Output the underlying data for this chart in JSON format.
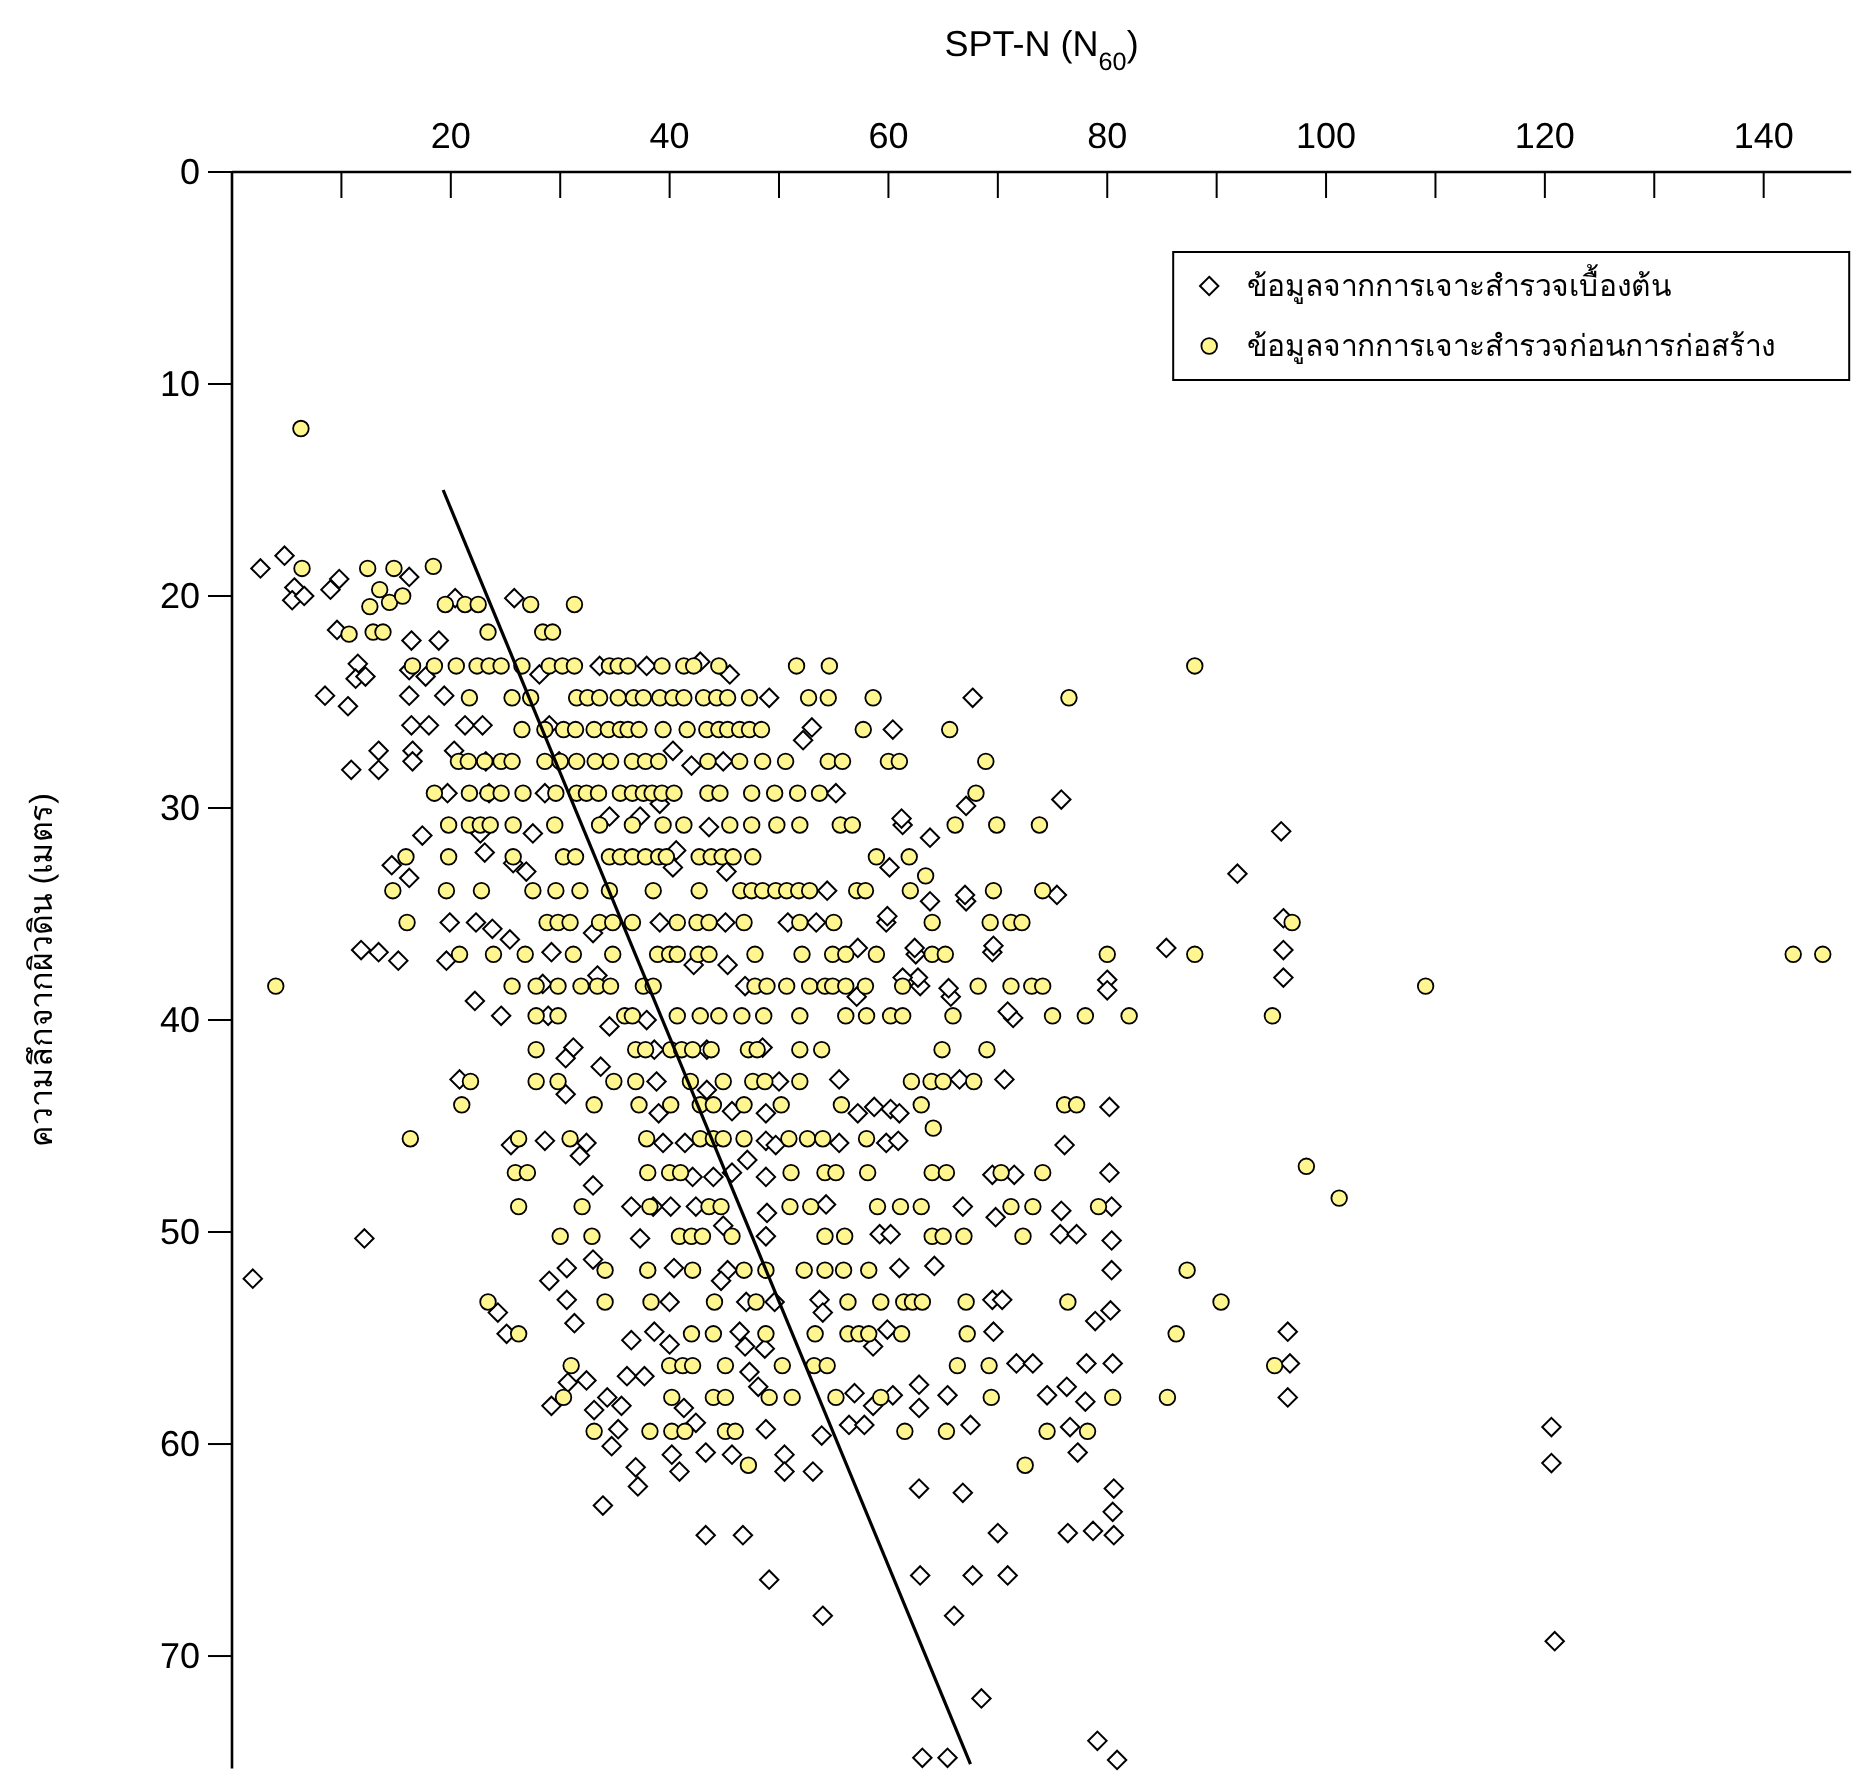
{
  "chart_data": {
    "type": "scatter",
    "xlabel": "SPT-N (N$_{60}$)",
    "ylabel": "ความลึกจากผิวดิน (เมตร)",
    "xlim": [
      0,
      148
    ],
    "ylim": [
      75.3,
      0
    ],
    "xticks": [
      {
        "value": 10,
        "label": null
      },
      20,
      {
        "value": 30,
        "label": null
      },
      40,
      {
        "value": 50,
        "label": null
      },
      60,
      {
        "value": 70,
        "label": null
      },
      80,
      {
        "value": 90,
        "label": null
      },
      100,
      {
        "value": 110,
        "label": null
      },
      120,
      {
        "value": 130,
        "label": null
      },
      140
    ],
    "yticks": [
      0,
      10,
      20,
      30,
      40,
      50,
      60,
      70
    ],
    "legend": "top right",
    "series": [
      {
        "name": "ข้อมูลจากการเจาะสำรวจเบื้องต้น",
        "type": "scatter",
        "marker": "diamond",
        "color": "#ffffff",
        "x": [
          2.6,
          4.8,
          5.7,
          5.5,
          6.6,
          9.0,
          9.8,
          16.2,
          25.8,
          20.4,
          9.6,
          16.4,
          18.9,
          11.5,
          11.3,
          12.2,
          8.5,
          10.6,
          16.2,
          17.7,
          16.2,
          19.4,
          28.1,
          33.6,
          37.9,
          42.8,
          45.5,
          49.1,
          67.7,
          16.4,
          18.0,
          21.3,
          22.9,
          29.0,
          13.4,
          16.5,
          20.3,
          10.9,
          13.4,
          16.5,
          23.2,
          29.9,
          40.3,
          42.0,
          44.9,
          52.2,
          53.0,
          60.4,
          19.7,
          23.5,
          28.6,
          39.1,
          55.2,
          67.1,
          17.4,
          22.7,
          27.5,
          34.5,
          37.3,
          40.6,
          43.6,
          61.3,
          63.8,
          14.6,
          16.2,
          23.1,
          25.7,
          26.9,
          40.3,
          45.2,
          19.9,
          22.3,
          23.8,
          25.4,
          33.0,
          39.1,
          45.1,
          50.8,
          53.4,
          59.8,
          67.1,
          63.8,
          54.4,
          60.1,
          11.8,
          13.4,
          15.2,
          19.6,
          29.2,
          42.2,
          45.3,
          62.5,
          69.5,
          22.2,
          24.6,
          28.4,
          33.4,
          37.9,
          46.9,
          57.1,
          62.9,
          65.7,
          71.4,
          61.2,
          75.8,
          95.9,
          91.9,
          96.1,
          96.1,
          96.1,
          85.4,
          69.6,
          75.4,
          67.0,
          59.9,
          57.2,
          62.4,
          62.7,
          61.3,
          65.5,
          80.0,
          80.0,
          70.9,
          1.9,
          12.1,
          28.9,
          34.5,
          31.2,
          30.5,
          38.6,
          48.5,
          43.4,
          20.8,
          30.5,
          33.7,
          38.8,
          43.4,
          50.0,
          39.0,
          45.7,
          48.8,
          25.5,
          28.6,
          32.4,
          31.8,
          33.0,
          39.4,
          41.4,
          48.8,
          49.7,
          42.1,
          44.0,
          45.7,
          47.1,
          48.8,
          36.5,
          38.5,
          40.1,
          42.4,
          48.9,
          44.9,
          37.3,
          48.8,
          30.6,
          29.0,
          33.0,
          40.4,
          45.3,
          44.7,
          30.6,
          24.3,
          25.1,
          31.3,
          40.0,
          47.0,
          49.6,
          36.5,
          38.6,
          40.0,
          46.4,
          46.9,
          48.7,
          32.4,
          30.7,
          36.1,
          37.7,
          47.3,
          48.1,
          29.2,
          34.3,
          35.6,
          41.3,
          42.4,
          33.1,
          34.7,
          35.3,
          36.9,
          37.1,
          40.2,
          40.9,
          43.3,
          45.7,
          48.8,
          50.5,
          50.5,
          33.9,
          43.3,
          46.7,
          49.1,
          55.5,
          66.5,
          70.6,
          57.2,
          58.7,
          60.2,
          61.0,
          80.2,
          55.5,
          59.8,
          60.9,
          76.1,
          69.5,
          71.5,
          80.2,
          54.3,
          66.8,
          69.8,
          75.8,
          80.4,
          59.2,
          60.2,
          75.7,
          77.2,
          80.4,
          61.0,
          64.2,
          80.4,
          53.7,
          54.0,
          69.5,
          70.4,
          78.9,
          80.3,
          96.5,
          58.6,
          59.9,
          69.6,
          71.7,
          73.2,
          78.1,
          80.5,
          96.7,
          96.5,
          56.9,
          62.8,
          62.8,
          65.4,
          58.6,
          60.4,
          74.5,
          76.3,
          78.0,
          67.5,
          76.6,
          56.4,
          57.8,
          120.6,
          120.6,
          53.9,
          53.1,
          77.3,
          62.8,
          66.8,
          80.6,
          80.5,
          70.0,
          76.4,
          78.7,
          80.6,
          62.9,
          67.7,
          70.9,
          54.0,
          66.0,
          120.9,
          68.5,
          79.1,
          63.1,
          65.4,
          80.9
        ],
        "values": [
          18.7,
          18.1,
          19.6,
          20.2,
          20.0,
          19.7,
          19.2,
          19.1,
          20.1,
          20.1,
          21.6,
          22.1,
          22.1,
          23.2,
          23.9,
          23.8,
          24.7,
          25.2,
          23.5,
          23.8,
          24.7,
          24.7,
          23.7,
          23.3,
          23.3,
          23.1,
          23.7,
          24.8,
          24.8,
          26.1,
          26.1,
          26.1,
          26.1,
          26.1,
          27.3,
          27.3,
          27.3,
          28.2,
          28.2,
          27.8,
          27.8,
          27.8,
          27.3,
          28.0,
          27.8,
          26.8,
          26.2,
          26.3,
          29.3,
          29.3,
          29.3,
          29.8,
          29.3,
          29.9,
          31.3,
          31.2,
          31.2,
          30.4,
          30.4,
          32.0,
          30.9,
          30.8,
          31.4,
          32.7,
          33.3,
          32.1,
          32.6,
          33.0,
          32.8,
          33.0,
          35.4,
          35.4,
          35.7,
          36.2,
          35.9,
          35.4,
          35.4,
          35.4,
          35.4,
          35.4,
          34.4,
          34.4,
          33.9,
          32.8,
          36.7,
          36.8,
          37.2,
          37.2,
          36.8,
          37.4,
          37.4,
          36.9,
          36.8,
          39.1,
          39.8,
          38.3,
          37.9,
          40.0,
          38.4,
          38.9,
          38.4,
          38.9,
          39.9,
          30.5,
          29.6,
          31.1,
          33.1,
          35.2,
          36.7,
          38.0,
          36.6,
          36.5,
          34.1,
          34.1,
          35.1,
          36.6,
          36.6,
          38.0,
          38.0,
          38.5,
          38.1,
          38.6,
          39.6,
          52.2,
          50.3,
          39.8,
          40.3,
          41.3,
          41.8,
          41.4,
          41.3,
          41.4,
          42.8,
          43.5,
          42.2,
          42.9,
          43.3,
          42.9,
          44.4,
          44.3,
          44.4,
          45.9,
          45.7,
          45.8,
          46.4,
          47.8,
          45.8,
          45.8,
          45.7,
          45.9,
          47.4,
          47.4,
          47.2,
          46.6,
          47.4,
          48.8,
          48.8,
          48.8,
          48.8,
          49.1,
          49.7,
          50.3,
          50.2,
          51.7,
          52.3,
          51.3,
          51.7,
          51.8,
          52.3,
          53.2,
          53.8,
          54.8,
          54.3,
          53.3,
          53.3,
          53.3,
          55.1,
          54.7,
          55.3,
          54.7,
          55.4,
          55.5,
          57.0,
          57.1,
          56.8,
          56.8,
          56.6,
          57.3,
          58.2,
          57.8,
          58.2,
          58.3,
          59.0,
          58.4,
          60.1,
          59.3,
          61.1,
          62.0,
          60.5,
          61.3,
          60.4,
          60.5,
          59.3,
          60.5,
          61.3,
          62.9,
          64.3,
          64.3,
          66.4,
          42.8,
          42.8,
          42.8,
          44.4,
          44.1,
          44.2,
          44.4,
          44.1,
          45.8,
          45.8,
          45.7,
          45.9,
          47.3,
          47.3,
          47.2,
          48.7,
          48.8,
          49.3,
          49.0,
          48.8,
          50.1,
          50.1,
          50.1,
          50.1,
          50.4,
          51.7,
          51.6,
          51.8,
          53.2,
          53.8,
          53.2,
          53.2,
          54.2,
          53.7,
          54.7,
          55.4,
          54.6,
          54.7,
          56.2,
          56.2,
          56.2,
          56.2,
          56.2,
          57.8,
          57.6,
          57.2,
          58.3,
          57.7,
          58.2,
          57.7,
          57.7,
          57.3,
          58.0,
          59.1,
          59.2,
          59.1,
          59.1,
          59.2,
          60.9,
          59.6,
          61.3,
          60.4,
          62.1,
          62.3,
          62.1,
          63.2,
          64.2,
          64.2,
          64.1,
          64.3,
          66.2,
          66.2,
          66.2,
          68.1,
          68.1,
          69.3,
          72.0,
          74.0,
          74.8,
          74.8,
          74.9
        ]
      },
      {
        "name": "ข้อมูลจากการเจาะสำรวจก่อนการก่อสร้าง",
        "type": "scatter",
        "marker": "circle",
        "color": "#fff68f",
        "x": [
          6.3,
          6.4,
          4.0,
          12.4,
          14.8,
          18.4,
          13.5,
          12.6,
          14.4,
          15.6,
          10.7,
          12.9,
          13.8,
          19.5,
          21.3,
          22.5,
          27.3,
          31.3,
          23.4,
          28.4,
          29.3,
          16.5,
          18.5,
          20.5,
          22.4,
          23.5,
          24.6,
          26.5,
          29.0,
          30.2,
          31.3,
          34.5,
          35.3,
          36.2,
          39.3,
          41.3,
          42.2,
          44.5,
          51.6,
          54.6,
          88.0,
          21.7,
          25.6,
          27.3,
          31.5,
          32.5,
          33.6,
          35.3,
          36.7,
          37.6,
          39.1,
          40.3,
          41.3,
          43.1,
          44.3,
          45.3,
          47.3,
          52.7,
          54.5,
          58.6,
          76.5,
          26.5,
          28.6,
          30.3,
          31.4,
          33.1,
          34.4,
          35.5,
          36.2,
          37.2,
          39.4,
          41.6,
          43.4,
          44.5,
          45.3,
          46.4,
          47.3,
          48.4,
          57.7,
          65.6,
          20.7,
          21.6,
          23.1,
          24.6,
          25.6,
          28.6,
          30.0,
          31.5,
          33.2,
          34.6,
          36.6,
          37.8,
          39.0,
          43.5,
          46.4,
          48.5,
          50.6,
          54.5,
          55.8,
          60.0,
          61.0,
          68.9,
          18.5,
          21.7,
          23.4,
          24.6,
          26.6,
          29.6,
          31.5,
          32.4,
          33.5,
          35.5,
          36.6,
          37.6,
          38.4,
          39.3,
          40.4,
          43.5,
          44.6,
          47.5,
          49.6,
          51.7,
          53.7,
          68.0,
          19.8,
          21.7,
          22.7,
          23.6,
          25.7,
          29.5,
          33.6,
          36.6,
          39.4,
          41.3,
          45.5,
          47.5,
          49.8,
          51.9,
          55.6,
          56.7,
          66.1,
          69.9,
          73.8,
          15.9,
          19.8,
          25.7,
          30.3,
          31.4,
          34.5,
          35.5,
          36.6,
          37.8,
          39.0,
          39.7,
          42.7,
          43.8,
          44.8,
          45.8,
          47.6,
          58.9,
          61.9,
          63.4,
          14.7,
          19.6,
          22.8,
          27.5,
          29.6,
          31.8,
          34.5,
          38.5,
          42.7,
          46.5,
          47.5,
          48.5,
          49.7,
          50.7,
          51.8,
          52.8,
          57.1,
          57.9,
          62.0,
          69.6,
          74.1,
          16.0,
          28.8,
          29.8,
          30.9,
          33.6,
          34.8,
          36.6,
          40.7,
          42.5,
          43.6,
          46.8,
          51.9,
          55.0,
          64.0,
          69.3,
          71.2,
          72.2,
          96.9,
          20.8,
          23.9,
          26.8,
          31.2,
          34.8,
          38.9,
          40.0,
          40.7,
          42.6,
          43.6,
          47.8,
          52.1,
          54.9,
          56.1,
          58.9,
          64.0,
          65.2,
          80.0,
          88.0,
          142.7,
          145.4,
          25.6,
          27.8,
          29.8,
          31.9,
          33.4,
          34.6,
          37.6,
          38.5,
          47.8,
          48.9,
          50.7,
          52.8,
          54.2,
          54.9,
          56.1,
          57.9,
          61.3,
          68.2,
          71.2,
          73.1,
          74.1,
          109.1,
          27.8,
          29.8,
          35.9,
          36.6,
          40.7,
          42.8,
          44.5,
          46.6,
          48.6,
          51.9,
          56.1,
          58.0,
          60.2,
          61.3,
          65.9,
          75.0,
          78.0,
          82.0,
          95.1,
          27.8,
          36.9,
          37.8,
          40.1,
          41.1,
          42.1,
          43.8,
          47.2,
          48.0,
          51.9,
          53.9,
          64.9,
          69.0,
          21.8,
          27.8,
          29.8,
          34.9,
          36.9,
          41.9,
          44.9,
          47.6,
          48.7,
          51.9,
          62.1,
          63.9,
          65.0,
          67.8,
          21.0,
          33.1,
          37.2,
          40.1,
          42.8,
          44.0,
          46.8,
          50.2,
          55.7,
          63.0,
          76.1,
          77.2,
          16.3,
          26.2,
          30.9,
          37.9,
          42.8,
          44.0,
          44.9,
          46.8,
          50.9,
          52.6,
          54.0,
          58.0,
          64.1,
          25.9,
          27.0,
          38.0,
          40.0,
          41.0,
          51.1,
          54.2,
          55.2,
          58.1,
          64.0,
          65.3,
          70.3,
          74.1,
          98.2,
          26.2,
          32.0,
          38.2,
          43.6,
          44.7,
          51.0,
          52.9,
          59.0,
          61.1,
          63.0,
          71.2,
          73.2,
          79.2,
          101.2,
          30.0,
          32.9,
          40.9,
          42.0,
          43.0,
          45.7,
          54.2,
          56.0,
          64.0,
          65.0,
          66.9,
          72.3,
          34.1,
          38.0,
          42.1,
          46.8,
          48.8,
          52.3,
          54.2,
          55.9,
          58.2,
          87.3,
          23.4,
          34.1,
          38.3,
          44.1,
          47.9,
          56.3,
          59.3,
          61.4,
          62.2,
          63.1,
          67.1,
          76.4,
          90.4,
          26.2,
          42.0,
          44.0,
          48.8,
          53.3,
          56.3,
          57.3,
          58.2,
          61.2,
          67.2,
          86.3,
          31.0,
          40.0,
          41.2,
          42.1,
          45.1,
          50.3,
          53.2,
          54.4,
          66.3,
          69.2,
          95.3,
          30.3,
          40.2,
          44.0,
          45.1,
          49.1,
          51.2,
          55.2,
          59.3,
          69.4,
          80.5,
          85.5,
          33.1,
          38.2,
          40.2,
          41.4,
          45.1,
          46.0,
          61.5,
          65.3,
          74.5,
          78.2,
          47.2,
          72.5
        ],
        "values": [
          12.1,
          18.7,
          38.4,
          18.7,
          18.7,
          18.6,
          19.7,
          20.5,
          20.3,
          20.0,
          21.8,
          21.7,
          21.7,
          20.4,
          20.4,
          20.4,
          20.4,
          20.4,
          21.7,
          21.7,
          21.7,
          23.3,
          23.3,
          23.3,
          23.3,
          23.3,
          23.3,
          23.3,
          23.3,
          23.3,
          23.3,
          23.3,
          23.3,
          23.3,
          23.3,
          23.3,
          23.3,
          23.3,
          23.3,
          23.3,
          23.3,
          24.8,
          24.8,
          24.8,
          24.8,
          24.8,
          24.8,
          24.8,
          24.8,
          24.8,
          24.8,
          24.8,
          24.8,
          24.8,
          24.8,
          24.8,
          24.8,
          24.8,
          24.8,
          24.8,
          24.8,
          26.3,
          26.3,
          26.3,
          26.3,
          26.3,
          26.3,
          26.3,
          26.3,
          26.3,
          26.3,
          26.3,
          26.3,
          26.3,
          26.3,
          26.3,
          26.3,
          26.3,
          26.3,
          26.3,
          27.8,
          27.8,
          27.8,
          27.8,
          27.8,
          27.8,
          27.8,
          27.8,
          27.8,
          27.8,
          27.8,
          27.8,
          27.8,
          27.8,
          27.8,
          27.8,
          27.8,
          27.8,
          27.8,
          27.8,
          27.8,
          27.8,
          29.3,
          29.3,
          29.3,
          29.3,
          29.3,
          29.3,
          29.3,
          29.3,
          29.3,
          29.3,
          29.3,
          29.3,
          29.3,
          29.3,
          29.3,
          29.3,
          29.3,
          29.3,
          29.3,
          29.3,
          29.3,
          29.3,
          30.8,
          30.8,
          30.8,
          30.8,
          30.8,
          30.8,
          30.8,
          30.8,
          30.8,
          30.8,
          30.8,
          30.8,
          30.8,
          30.8,
          30.8,
          30.8,
          30.8,
          30.8,
          30.8,
          32.3,
          32.3,
          32.3,
          32.3,
          32.3,
          32.3,
          32.3,
          32.3,
          32.3,
          32.3,
          32.3,
          32.3,
          32.3,
          32.3,
          32.3,
          32.3,
          32.3,
          32.3,
          33.2,
          33.9,
          33.9,
          33.9,
          33.9,
          33.9,
          33.9,
          33.9,
          33.9,
          33.9,
          33.9,
          33.9,
          33.9,
          33.9,
          33.9,
          33.9,
          33.9,
          33.9,
          33.9,
          33.9,
          33.9,
          33.9,
          35.4,
          35.4,
          35.4,
          35.4,
          35.4,
          35.4,
          35.4,
          35.4,
          35.4,
          35.4,
          35.4,
          35.4,
          35.4,
          35.4,
          35.4,
          35.4,
          35.4,
          35.4,
          36.9,
          36.9,
          36.9,
          36.9,
          36.9,
          36.9,
          36.9,
          36.9,
          36.9,
          36.9,
          36.9,
          36.9,
          36.9,
          36.9,
          36.9,
          36.9,
          36.9,
          36.9,
          36.9,
          36.9,
          36.9,
          38.4,
          38.4,
          38.4,
          38.4,
          38.4,
          38.4,
          38.4,
          38.4,
          38.4,
          38.4,
          38.4,
          38.4,
          38.4,
          38.4,
          38.4,
          38.4,
          38.4,
          38.4,
          38.4,
          38.4,
          38.4,
          38.4,
          39.8,
          39.8,
          39.8,
          39.8,
          39.8,
          39.8,
          39.8,
          39.8,
          39.8,
          39.8,
          39.8,
          39.8,
          39.8,
          39.8,
          39.8,
          39.8,
          39.8,
          39.8,
          39.8,
          41.4,
          41.4,
          41.4,
          41.4,
          41.4,
          41.4,
          41.4,
          41.4,
          41.4,
          41.4,
          41.4,
          41.4,
          41.4,
          42.9,
          42.9,
          42.9,
          42.9,
          42.9,
          42.9,
          42.9,
          42.9,
          42.9,
          42.9,
          42.9,
          42.9,
          42.9,
          42.9,
          44.0,
          44.0,
          44.0,
          44.0,
          44.0,
          44.0,
          44.0,
          44.0,
          44.0,
          44.0,
          44.0,
          44.0,
          45.6,
          45.6,
          45.6,
          45.6,
          45.6,
          45.6,
          45.6,
          45.6,
          45.6,
          45.6,
          45.6,
          45.6,
          45.1,
          47.2,
          47.2,
          47.2,
          47.2,
          47.2,
          47.2,
          47.2,
          47.2,
          47.2,
          47.2,
          47.2,
          47.2,
          47.2,
          46.9,
          48.8,
          48.8,
          48.8,
          48.8,
          48.8,
          48.8,
          48.8,
          48.8,
          48.8,
          48.8,
          48.8,
          48.8,
          48.8,
          48.4,
          50.2,
          50.2,
          50.2,
          50.2,
          50.2,
          50.2,
          50.2,
          50.2,
          50.2,
          50.2,
          50.2,
          50.2,
          51.8,
          51.8,
          51.8,
          51.8,
          51.8,
          51.8,
          51.8,
          51.8,
          51.8,
          51.8,
          53.3,
          53.3,
          53.3,
          53.3,
          53.3,
          53.3,
          53.3,
          53.3,
          53.3,
          53.3,
          53.3,
          53.3,
          53.3,
          54.8,
          54.8,
          54.8,
          54.8,
          54.8,
          54.8,
          54.8,
          54.8,
          54.8,
          54.8,
          54.8,
          56.3,
          56.3,
          56.3,
          56.3,
          56.3,
          56.3,
          56.3,
          56.3,
          56.3,
          56.3,
          56.3,
          57.8,
          57.8,
          57.8,
          57.8,
          57.8,
          57.8,
          57.8,
          57.8,
          57.8,
          57.8,
          57.8,
          59.4,
          59.4,
          59.4,
          59.4,
          59.4,
          59.4,
          59.4,
          59.4,
          59.4,
          59.4,
          61.0,
          61.0
        ]
      },
      {
        "type": "line",
        "marker": "none",
        "color": "#000000",
        "x": [
          19.3,
          67.5
        ],
        "values": [
          15.0,
          75.1
        ]
      }
    ]
  }
}
